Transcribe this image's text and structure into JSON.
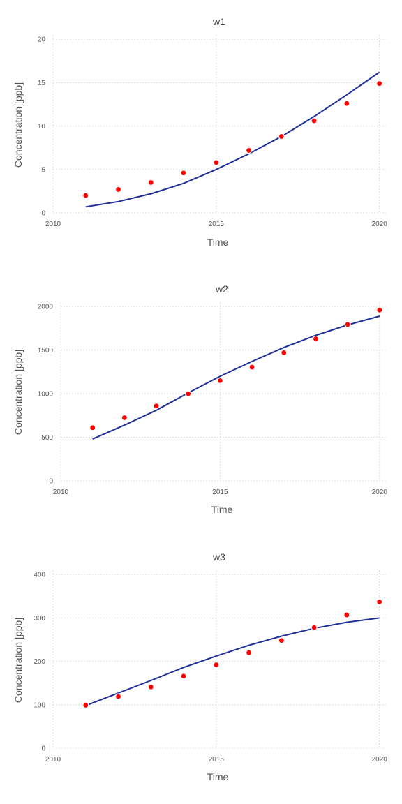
{
  "chart_data": [
    {
      "type": "line",
      "title": "w1",
      "xlabel": "Time",
      "ylabel": "Concentration [ppb]",
      "xlim": [
        2010,
        2020.2
      ],
      "ylim": [
        0,
        20.5
      ],
      "xticks": [
        2010,
        2015,
        2020
      ],
      "yticks": [
        0,
        5,
        10,
        15,
        20
      ],
      "grid": true,
      "series": [
        {
          "kind": "line",
          "color": "#1f2f99",
          "x": [
            2011,
            2012,
            2013,
            2014,
            2015,
            2016,
            2017,
            2018,
            2019,
            2020
          ],
          "values": [
            0.7,
            1.3,
            2.2,
            3.4,
            5.0,
            6.8,
            8.8,
            11.1,
            13.6,
            16.2
          ]
        },
        {
          "kind": "scatter",
          "color": "#ff0000",
          "x": [
            2011,
            2012,
            2013,
            2014,
            2015,
            2016,
            2017,
            2018,
            2019,
            2020
          ],
          "values": [
            2.0,
            2.7,
            3.5,
            4.6,
            5.8,
            7.2,
            8.8,
            10.6,
            12.6,
            14.9
          ]
        }
      ]
    },
    {
      "type": "line",
      "title": "w2",
      "xlabel": "Time",
      "ylabel": "Concentration [ppb]",
      "xlim": [
        2010,
        2020.2
      ],
      "ylim": [
        0,
        2050
      ],
      "xticks": [
        2010,
        2015,
        2020
      ],
      "yticks": [
        0,
        500,
        1000,
        1500,
        2000
      ],
      "grid": true,
      "series": [
        {
          "kind": "line",
          "color": "#1f2f99",
          "x": [
            2011,
            2012,
            2013,
            2014,
            2015,
            2016,
            2017,
            2018,
            2019,
            2020
          ],
          "values": [
            480,
            640,
            810,
            1010,
            1200,
            1370,
            1530,
            1670,
            1790,
            1890
          ]
        },
        {
          "kind": "scatter",
          "color": "#ff0000",
          "x": [
            2011,
            2012,
            2013,
            2014,
            2015,
            2016,
            2017,
            2018,
            2019,
            2020
          ],
          "values": [
            610,
            725,
            860,
            1000,
            1150,
            1305,
            1470,
            1630,
            1795,
            1960
          ]
        }
      ]
    },
    {
      "type": "line",
      "title": "w3",
      "xlabel": "Time",
      "ylabel": "Concentration [ppb]",
      "xlim": [
        2010,
        2020.2
      ],
      "ylim": [
        0,
        410
      ],
      "xticks": [
        2010,
        2015,
        2020
      ],
      "yticks": [
        0,
        100,
        200,
        300,
        400
      ],
      "grid": true,
      "series": [
        {
          "kind": "line",
          "color": "#1f2f99",
          "x": [
            2011,
            2012,
            2013,
            2014,
            2015,
            2016,
            2017,
            2018,
            2019,
            2020
          ],
          "values": [
            98,
            127,
            156,
            186,
            212,
            237,
            258,
            276,
            290,
            300
          ]
        },
        {
          "kind": "scatter",
          "color": "#ff0000",
          "x": [
            2011,
            2012,
            2013,
            2014,
            2015,
            2016,
            2017,
            2018,
            2019,
            2020
          ],
          "values": [
            99,
            119,
            141,
            166,
            192,
            220,
            248,
            278,
            307,
            337
          ]
        }
      ]
    }
  ]
}
